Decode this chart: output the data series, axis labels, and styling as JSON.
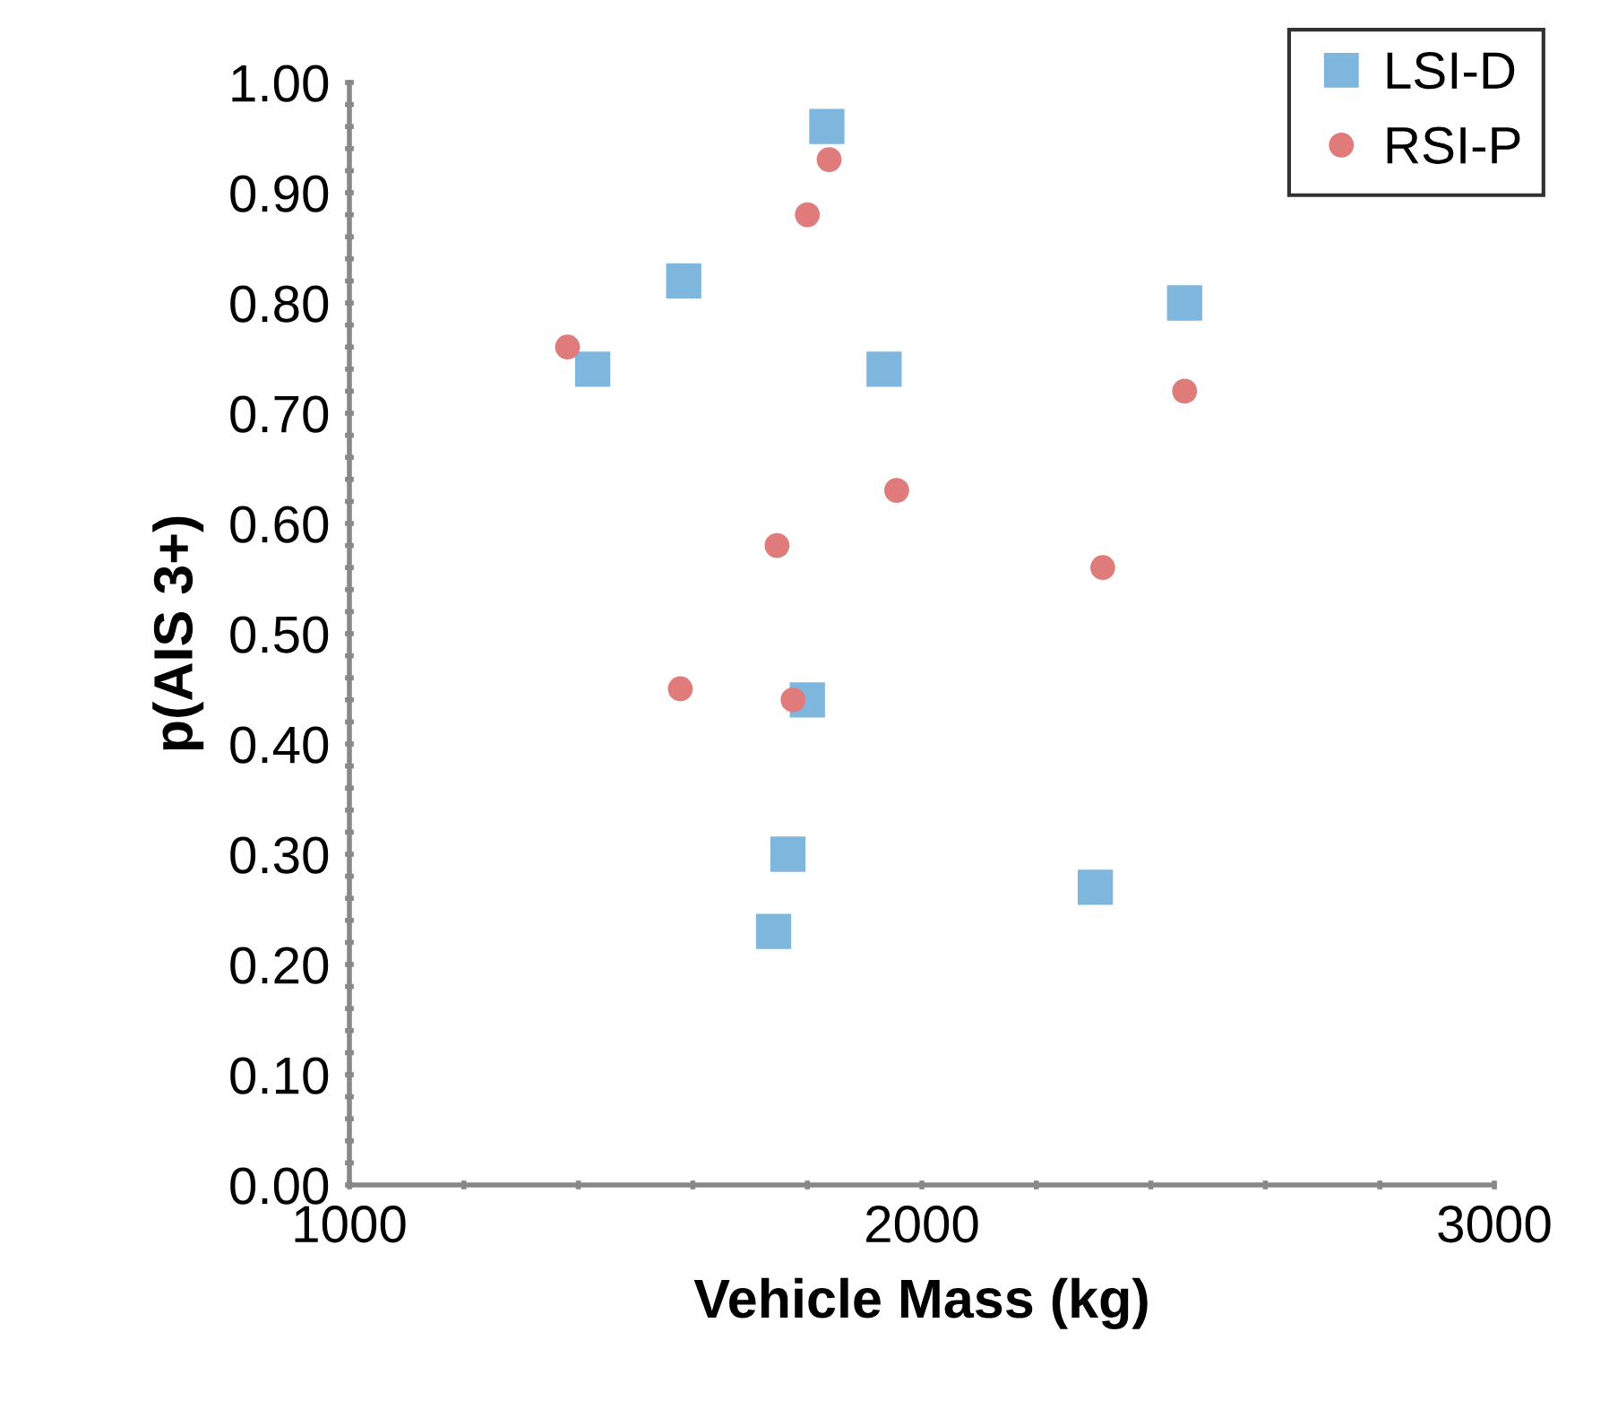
{
  "chart_data": {
    "type": "scatter",
    "xlabel": "Vehicle Mass (kg)",
    "ylabel": "p(AIS 3+)",
    "series": [
      {
        "name": "LSI-D",
        "color": "#7fb6de",
        "marker": "square",
        "x": [
          1834,
          1584,
          1425,
          1934,
          2459,
          1800,
          1766,
          1741,
          2303
        ],
        "values": [
          0.96,
          0.82,
          0.74,
          0.74,
          0.8,
          0.44,
          0.3,
          0.23,
          0.27
        ]
      },
      {
        "name": "RSI-P",
        "color": "#e07b7b",
        "marker": "circle",
        "x": [
          1838,
          1800,
          1381,
          2459,
          1956,
          1747,
          2316,
          1578,
          1775
        ],
        "values": [
          0.93,
          0.88,
          0.76,
          0.72,
          0.63,
          0.58,
          0.56,
          0.45,
          0.44
        ]
      }
    ],
    "xlim": [
      1000,
      3000
    ],
    "xticks": [
      1000,
      {
        "value": 1200,
        "label": null
      },
      {
        "value": 1400,
        "label": null
      },
      {
        "value": 1600,
        "label": null
      },
      {
        "value": 1800,
        "label": null
      },
      2000,
      {
        "value": 2200,
        "label": null
      },
      {
        "value": 2400,
        "label": null
      },
      {
        "value": 2600,
        "label": null
      },
      {
        "value": 2800,
        "label": null
      },
      3000
    ],
    "ylim": [
      0,
      1
    ],
    "yticks": [
      {
        "value": 0,
        "label": "0.00"
      },
      {
        "value": 0.02,
        "label": null
      },
      {
        "value": 0.04,
        "label": null
      },
      {
        "value": 0.06,
        "label": null
      },
      {
        "value": 0.08,
        "label": null
      },
      {
        "value": 0.1,
        "label": "0.10"
      },
      {
        "value": 0.12,
        "label": null
      },
      {
        "value": 0.14,
        "label": null
      },
      {
        "value": 0.16,
        "label": null
      },
      {
        "value": 0.18,
        "label": null
      },
      {
        "value": 0.2,
        "label": "0.20"
      },
      {
        "value": 0.22,
        "label": null
      },
      {
        "value": 0.24,
        "label": null
      },
      {
        "value": 0.26,
        "label": null
      },
      {
        "value": 0.28,
        "label": null
      },
      {
        "value": 0.3,
        "label": "0.30"
      },
      {
        "value": 0.32,
        "label": null
      },
      {
        "value": 0.34,
        "label": null
      },
      {
        "value": 0.36,
        "label": null
      },
      {
        "value": 0.38,
        "label": null
      },
      {
        "value": 0.4,
        "label": "0.40"
      },
      {
        "value": 0.42,
        "label": null
      },
      {
        "value": 0.44,
        "label": null
      },
      {
        "value": 0.46,
        "label": null
      },
      {
        "value": 0.48,
        "label": null
      },
      {
        "value": 0.5,
        "label": "0.50"
      },
      {
        "value": 0.52,
        "label": null
      },
      {
        "value": 0.54,
        "label": null
      },
      {
        "value": 0.56,
        "label": null
      },
      {
        "value": 0.58,
        "label": null
      },
      {
        "value": 0.6,
        "label": "0.60"
      },
      {
        "value": 0.62,
        "label": null
      },
      {
        "value": 0.64,
        "label": null
      },
      {
        "value": 0.66,
        "label": null
      },
      {
        "value": 0.68,
        "label": null
      },
      {
        "value": 0.7,
        "label": "0.70"
      },
      {
        "value": 0.72,
        "label": null
      },
      {
        "value": 0.74,
        "label": null
      },
      {
        "value": 0.76,
        "label": null
      },
      {
        "value": 0.78,
        "label": null
      },
      {
        "value": 0.8,
        "label": "0.80"
      },
      {
        "value": 0.82,
        "label": null
      },
      {
        "value": 0.84,
        "label": null
      },
      {
        "value": 0.86,
        "label": null
      },
      {
        "value": 0.88,
        "label": null
      },
      {
        "value": 0.9,
        "label": "0.90"
      },
      {
        "value": 0.92,
        "label": null
      },
      {
        "value": 0.94,
        "label": null
      },
      {
        "value": 0.96,
        "label": null
      },
      {
        "value": 0.98,
        "label": null
      },
      {
        "value": 1,
        "label": "1.00"
      }
    ],
    "grid": false,
    "legend": "top right"
  }
}
